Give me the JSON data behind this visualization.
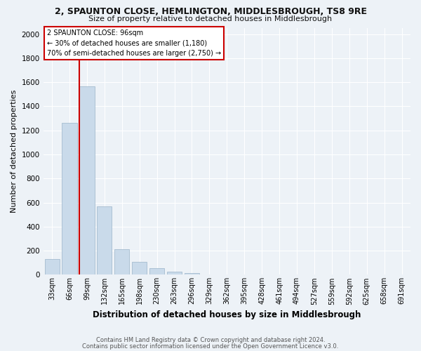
{
  "title1": "2, SPAUNTON CLOSE, HEMLINGTON, MIDDLESBROUGH, TS8 9RE",
  "title2": "Size of property relative to detached houses in Middlesbrough",
  "xlabel": "Distribution of detached houses by size in Middlesbrough",
  "ylabel": "Number of detached properties",
  "categories": [
    "33sqm",
    "66sqm",
    "99sqm",
    "132sqm",
    "165sqm",
    "198sqm",
    "230sqm",
    "263sqm",
    "296sqm",
    "329sqm",
    "362sqm",
    "395sqm",
    "428sqm",
    "461sqm",
    "494sqm",
    "527sqm",
    "559sqm",
    "592sqm",
    "625sqm",
    "658sqm",
    "691sqm"
  ],
  "values": [
    130,
    1265,
    1565,
    570,
    215,
    105,
    55,
    25,
    15,
    0,
    0,
    0,
    0,
    0,
    0,
    0,
    0,
    0,
    0,
    0,
    0
  ],
  "bar_color": "#c9daea",
  "bar_edge_color": "#9ab4c8",
  "vline_color": "#cc0000",
  "vline_x_index": 2,
  "annotation_text1": "2 SPAUNTON CLOSE: 96sqm",
  "annotation_text2": "← 30% of detached houses are smaller (1,180)",
  "annotation_text3": "70% of semi-detached houses are larger (2,750) →",
  "ylim": [
    0,
    2050
  ],
  "yticks": [
    0,
    200,
    400,
    600,
    800,
    1000,
    1200,
    1400,
    1600,
    1800,
    2000
  ],
  "footer1": "Contains HM Land Registry data © Crown copyright and database right 2024.",
  "footer2": "Contains public sector information licensed under the Open Government Licence v3.0.",
  "bg_color": "#edf2f7",
  "grid_color": "#ffffff",
  "title_fontsize": 9,
  "subtitle_fontsize": 8,
  "ylabel_fontsize": 8,
  "xlabel_fontsize": 8.5,
  "tick_fontsize": 7,
  "footer_fontsize": 6
}
